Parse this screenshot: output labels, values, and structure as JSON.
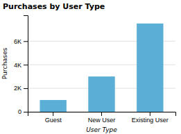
{
  "chart_data": {
    "type": "bar",
    "title": "Purchases by User Type",
    "xlabel": "User Type",
    "ylabel": "Purchases",
    "categories": [
      "Guest",
      "New User",
      "Existing User"
    ],
    "values": [
      1000,
      3000,
      7500
    ],
    "color": "#5bafd6",
    "ylim": [
      0,
      8200
    ],
    "yticks": [
      0,
      {
        "value": 2000,
        "label": "2K"
      },
      {
        "value": 4000,
        "label": "4K"
      },
      {
        "value": 6000,
        "label": "6K"
      }
    ],
    "grid": true
  }
}
